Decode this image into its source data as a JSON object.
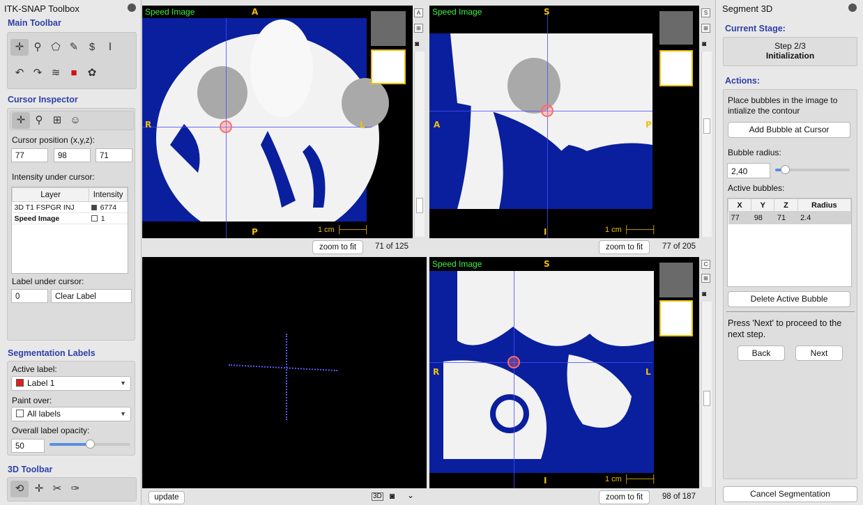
{
  "left_panel": {
    "title": "ITK-SNAP Toolbox",
    "main_toolbar": {
      "heading": "Main Toolbar"
    },
    "cursor_inspector": {
      "heading": "Cursor Inspector",
      "position_label": "Cursor position (x,y,z):",
      "x": "77",
      "y": "98",
      "z": "71",
      "intensity_label": "Intensity under cursor:",
      "columns": [
        "Layer",
        "Intensity"
      ],
      "rows": [
        {
          "layer": "3D T1 FSPGR INJ",
          "value": "6774"
        },
        {
          "layer": "Speed Image",
          "value": "1"
        }
      ],
      "label_under_cursor": "Label under cursor:",
      "label_id": "0",
      "label_name": "Clear Label"
    },
    "segmentation_labels": {
      "heading": "Segmentation Labels",
      "active_label_caption": "Active label:",
      "active_label": "Label 1",
      "active_label_color": "#e02020",
      "paint_over_caption": "Paint over:",
      "paint_over": "All labels",
      "opacity_caption": "Overall label opacity:",
      "opacity": "50"
    },
    "toolbar_3d": {
      "heading": "3D Toolbar"
    }
  },
  "viewports": {
    "axial": {
      "layer": "Speed Image",
      "top": "A",
      "bottom": "P",
      "left": "R",
      "right": "L",
      "scale": "1 cm",
      "slice": "71 of 125",
      "zoom": "zoom to fit",
      "view_letter": "A"
    },
    "sagittal": {
      "layer": "Speed Image",
      "top": "S",
      "bottom": "I",
      "left": "A",
      "right": "P",
      "scale": "1 cm",
      "slice": "77 of 205",
      "zoom": "zoom to fit",
      "view_letter": "S"
    },
    "render3d": {
      "update": "update"
    },
    "coronal": {
      "layer": "Speed Image",
      "top": "S",
      "bottom": "I",
      "left": "R",
      "right": "L",
      "scale": "1 cm",
      "slice": "98 of 187",
      "zoom": "zoom to fit",
      "view_letter": "C"
    }
  },
  "right_panel": {
    "title": "Segment 3D",
    "stage_heading": "Current Stage:",
    "stage_step": "Step 2/3",
    "stage_name": "Initialization",
    "actions_heading": "Actions:",
    "instructions": "Place bubbles in the image to intialize the contour",
    "add_bubble": "Add Bubble at Cursor",
    "radius_label": "Bubble radius:",
    "radius_value": "2,40",
    "active_bubbles_label": "Active bubbles:",
    "bubble_columns": [
      "X",
      "Y",
      "Z",
      "Radius"
    ],
    "bubbles": [
      {
        "x": "77",
        "y": "98",
        "z": "71",
        "r": "2.4"
      }
    ],
    "delete_bubble": "Delete Active Bubble",
    "next_hint": "Press 'Next' to proceed to the next step.",
    "back": "Back",
    "next": "Next",
    "cancel": "Cancel Segmentation"
  }
}
